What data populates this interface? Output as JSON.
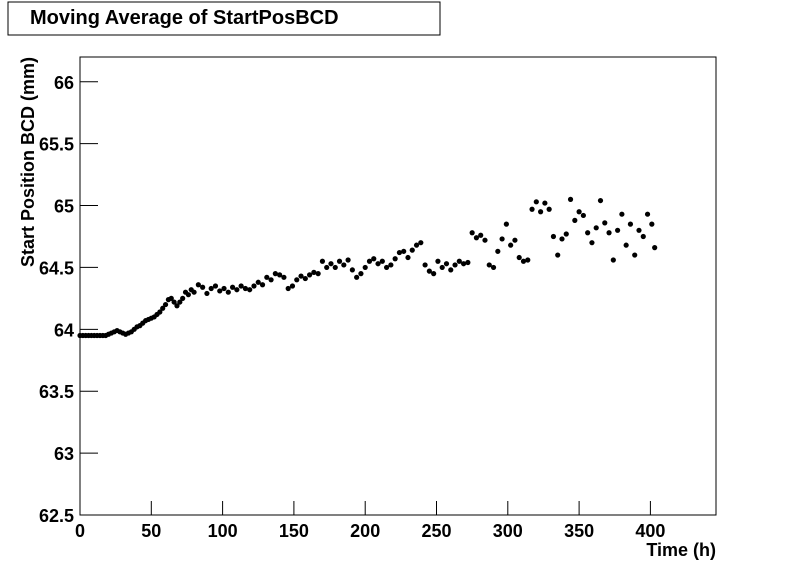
{
  "chart_data": {
    "type": "scatter",
    "title": "Moving Average of StartPosBCD",
    "x_label": "Time (h)",
    "y_label": "Start Position BCD (mm)",
    "xlim": [
      0,
      446
    ],
    "ylim": [
      62.5,
      66.2
    ],
    "xticks": [
      0,
      50,
      100,
      150,
      200,
      250,
      300,
      350,
      400
    ],
    "yticks": [
      62.5,
      63,
      63.5,
      64,
      64.5,
      65,
      65.5,
      66
    ],
    "color": "#000000",
    "x": [
      0,
      2,
      4,
      6,
      8,
      10,
      12,
      14,
      16,
      18,
      20,
      22,
      24,
      26,
      28,
      30,
      32,
      34,
      36,
      38,
      40,
      42,
      44,
      46,
      48,
      50,
      52,
      54,
      56,
      58,
      60,
      62,
      64,
      66,
      68,
      70,
      72,
      74,
      76,
      78,
      80,
      83,
      86,
      89,
      92,
      95,
      98,
      101,
      104,
      107,
      110,
      113,
      116,
      119,
      122,
      125,
      128,
      131,
      134,
      137,
      140,
      143,
      146,
      149,
      152,
      155,
      158,
      161,
      164,
      167,
      170,
      173,
      176,
      179,
      182,
      185,
      188,
      191,
      194,
      197,
      200,
      203,
      206,
      209,
      212,
      215,
      218,
      221,
      224,
      227,
      230,
      233,
      236,
      239,
      242,
      245,
      248,
      251,
      254,
      257,
      260,
      263,
      266,
      269,
      272,
      275,
      278,
      281,
      284,
      287,
      290,
      293,
      296,
      299,
      302,
      305,
      308,
      311,
      314,
      317,
      320,
      323,
      326,
      329,
      332,
      335,
      338,
      341,
      344,
      347,
      350,
      353,
      356,
      359,
      362,
      365,
      368,
      371,
      374,
      377,
      380,
      383,
      386,
      389,
      392,
      395,
      398,
      401,
      403
    ],
    "values": [
      63.95,
      63.95,
      63.95,
      63.95,
      63.95,
      63.95,
      63.95,
      63.95,
      63.95,
      63.95,
      63.96,
      63.97,
      63.98,
      63.99,
      63.98,
      63.97,
      63.96,
      63.97,
      63.98,
      64.0,
      64.02,
      64.03,
      64.05,
      64.07,
      64.08,
      64.09,
      64.1,
      64.12,
      64.14,
      64.17,
      64.2,
      64.24,
      64.25,
      64.22,
      64.19,
      64.22,
      64.25,
      64.3,
      64.28,
      64.32,
      64.3,
      64.36,
      64.34,
      64.29,
      64.33,
      64.35,
      64.31,
      64.33,
      64.3,
      64.34,
      64.32,
      64.35,
      64.33,
      64.32,
      64.35,
      64.38,
      64.36,
      64.42,
      64.4,
      64.45,
      64.44,
      64.42,
      64.33,
      64.35,
      64.4,
      64.43,
      64.41,
      64.44,
      64.46,
      64.45,
      64.55,
      64.5,
      64.53,
      64.5,
      64.55,
      64.52,
      64.56,
      64.48,
      64.42,
      64.45,
      64.5,
      64.55,
      64.57,
      64.53,
      64.55,
      64.5,
      64.52,
      64.57,
      64.62,
      64.63,
      64.58,
      64.64,
      64.68,
      64.7,
      64.52,
      64.47,
      64.45,
      64.55,
      64.5,
      64.53,
      64.48,
      64.52,
      64.55,
      64.53,
      64.54,
      64.78,
      64.74,
      64.76,
      64.72,
      64.52,
      64.5,
      64.63,
      64.73,
      64.85,
      64.68,
      64.72,
      64.58,
      64.55,
      64.56,
      64.97,
      65.03,
      64.95,
      65.02,
      64.97,
      64.75,
      64.6,
      64.73,
      64.77,
      65.05,
      64.88,
      64.95,
      64.92,
      64.78,
      64.7,
      64.82,
      65.04,
      64.86,
      64.78,
      64.56,
      64.8,
      64.93,
      64.68,
      64.85,
      64.6,
      64.8,
      64.75,
      64.93,
      64.85,
      64.66
    ]
  }
}
